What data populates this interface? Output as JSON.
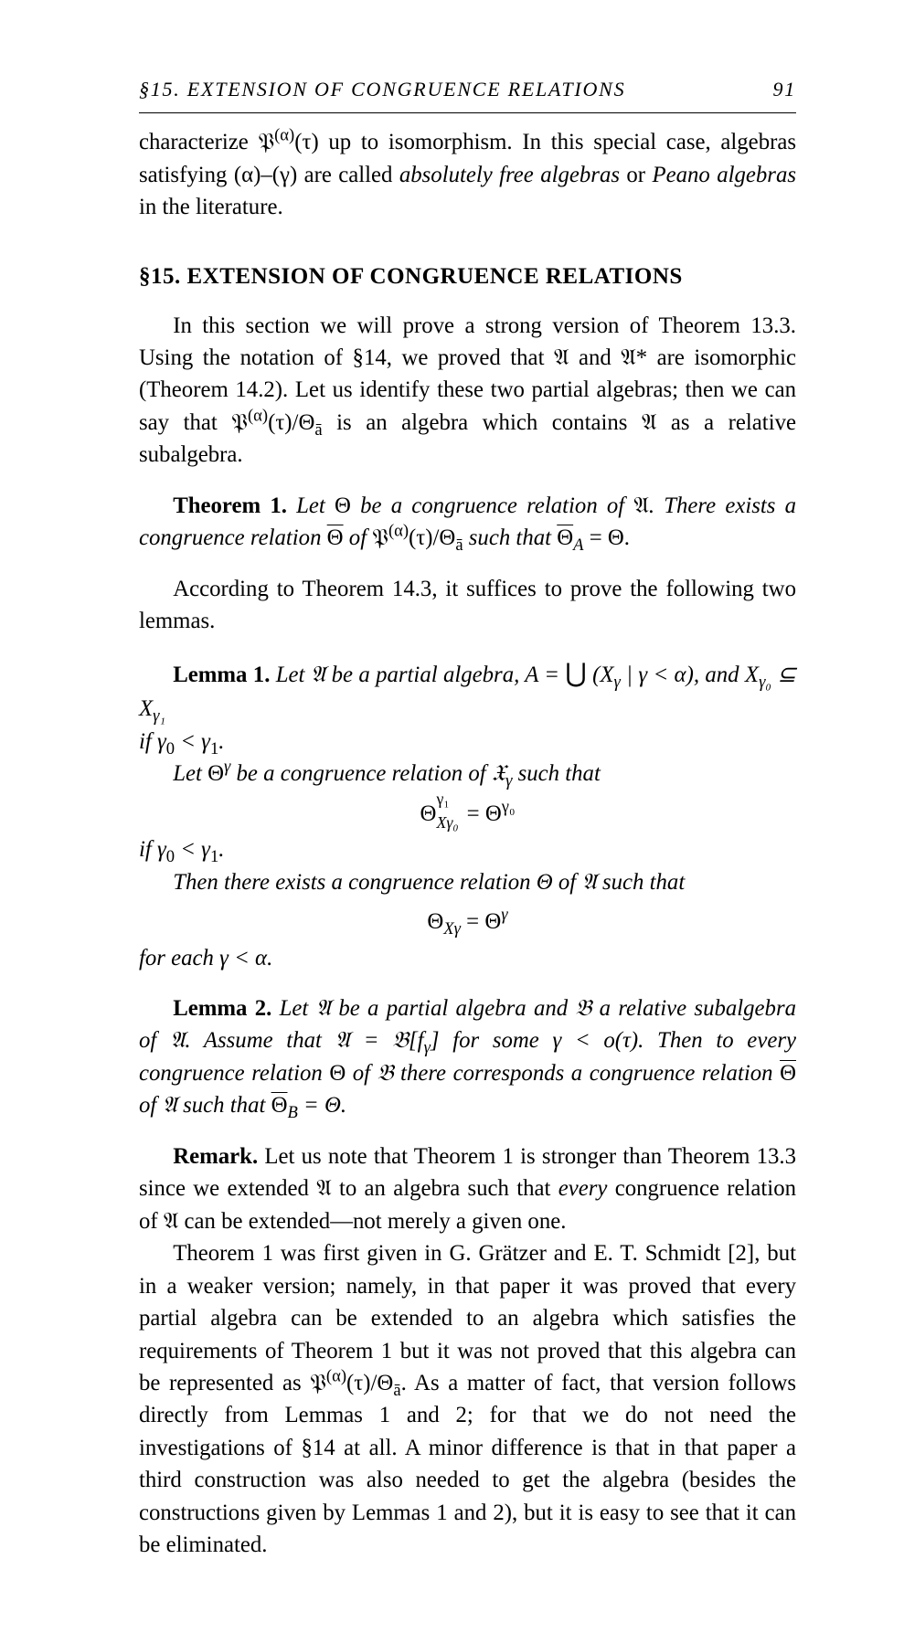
{
  "running_head": {
    "title": "§15. EXTENSION OF CONGRUENCE RELATIONS",
    "page_number": "91"
  },
  "intro_para": {
    "prefix": "characterize 𝔓",
    "sup1": "(α)",
    "mid1": "(τ) up to isomorphism. In this special case, algebras satisfying (α)–(γ) are called ",
    "ital1": "absolutely free algebras",
    "mid2": " or ",
    "ital2": "Peano algebras",
    "suffix": " in the literature."
  },
  "section_title": "§15. EXTENSION OF CONGRUENCE RELATIONS",
  "para1": {
    "a": "In this section we will prove a strong version of Theorem 13.3. Using the notation of §14, we proved that 𝔄 and 𝔄* are isomorphic (Theorem 14.2). Let us identify these two partial algebras; then we can say that 𝔓",
    "sup": "(α)",
    "b": "(τ)/Θ",
    "sub": "ā",
    "c": " is an algebra which contains 𝔄 as a relative subalgebra."
  },
  "theorem1": {
    "label": "Theorem 1.",
    "a": " Let ",
    "b": "Θ",
    "c": " be a congruence relation of ",
    "d": "𝔄",
    "e": ". There exists a congruence relation ",
    "fbar": "Θ",
    "g": " of ",
    "h1": "𝔓",
    "hsup": "(α)",
    "h2": "(τ)/Θ",
    "hsub": "ā",
    "i": " such that ",
    "jbar": "Θ",
    "jsub": "A",
    "k": " = Θ."
  },
  "para2": "According to Theorem 14.3, it suffices to prove the following two lemmas.",
  "lemma1": {
    "label": "Lemma 1.",
    "line1a": " Let 𝔄 be a partial algebra, A = ",
    "union": "⋃",
    "line1b": " (X",
    "sg": "γ",
    "line1c": " | γ < α), and X",
    "sg0": "γ₀",
    "line1d": " ⊆ X",
    "sg1": "γ₁",
    "line2a": "if γ",
    "s0": "0",
    "line2b": " < γ",
    "s1": "1",
    "line2c": ".",
    "line3a": "Let ",
    "line3b": "Θ",
    "supg": "γ",
    "line3c": " be a congruence relation of 𝔛",
    "line3d": " such that"
  },
  "eq1": {
    "base": "Θ",
    "sup": "γ₁",
    "sub": "Xγ₀",
    "eq": "  =  ",
    "rbase": "Θ",
    "rsup": "γ₀"
  },
  "lemma1b": {
    "line1a": "if γ",
    "s0": "0",
    "line1b": " < γ",
    "s1": "1",
    "line1c": ".",
    "line2": "Then there exists a congruence relation Θ of 𝔄 such that"
  },
  "eq2": {
    "base": "Θ",
    "sub": "Xγ",
    "eq": "  =  ",
    "rbase": "Θ",
    "rsup": "γ"
  },
  "lemma1c": "for each γ < α.",
  "lemma2": {
    "label": "Lemma 2.",
    "a": " Let 𝔄 be a partial algebra and 𝔅 a relative subalgebra of 𝔄. Assume that 𝔄 = 𝔅[f",
    "sub": "γ",
    "b": "] for some γ < o(τ). Then to every congruence relation ",
    "th": "Θ",
    "c": " of 𝔅 there corresponds a congruence relation ",
    "thbar": "Θ",
    "d": " of 𝔄 such that ",
    "thbar2": "Θ",
    "subB": "B",
    "e": " = Θ."
  },
  "remark": {
    "label": "Remark.",
    "a": " Let us note that Theorem 1 is stronger than Theorem 13.3 since we extended 𝔄 to an algebra such that ",
    "ital": "every",
    "b": " congruence relation of 𝔄 can be extended—not merely a given one."
  },
  "para3": {
    "a": "Theorem 1 was first given in G. Grätzer and E. T. Schmidt [2], but in a weaker version; namely, in that paper it was proved that every partial algebra can be extended to an algebra which satisfies the requirements of Theorem 1 but it was not proved that this algebra can be represented as 𝔓",
    "sup": "(α)",
    "b": "(τ)/Θ",
    "sub": "ā",
    "c": ". As a matter of fact, that version follows directly from Lemmas 1 and 2; for that we do not need the investigations of §14 at all. A minor difference is that in that paper a third construction was also needed to get the algebra (besides the constructions given by Lemmas 1 and 2), but it is easy to see that it can be eliminated."
  }
}
